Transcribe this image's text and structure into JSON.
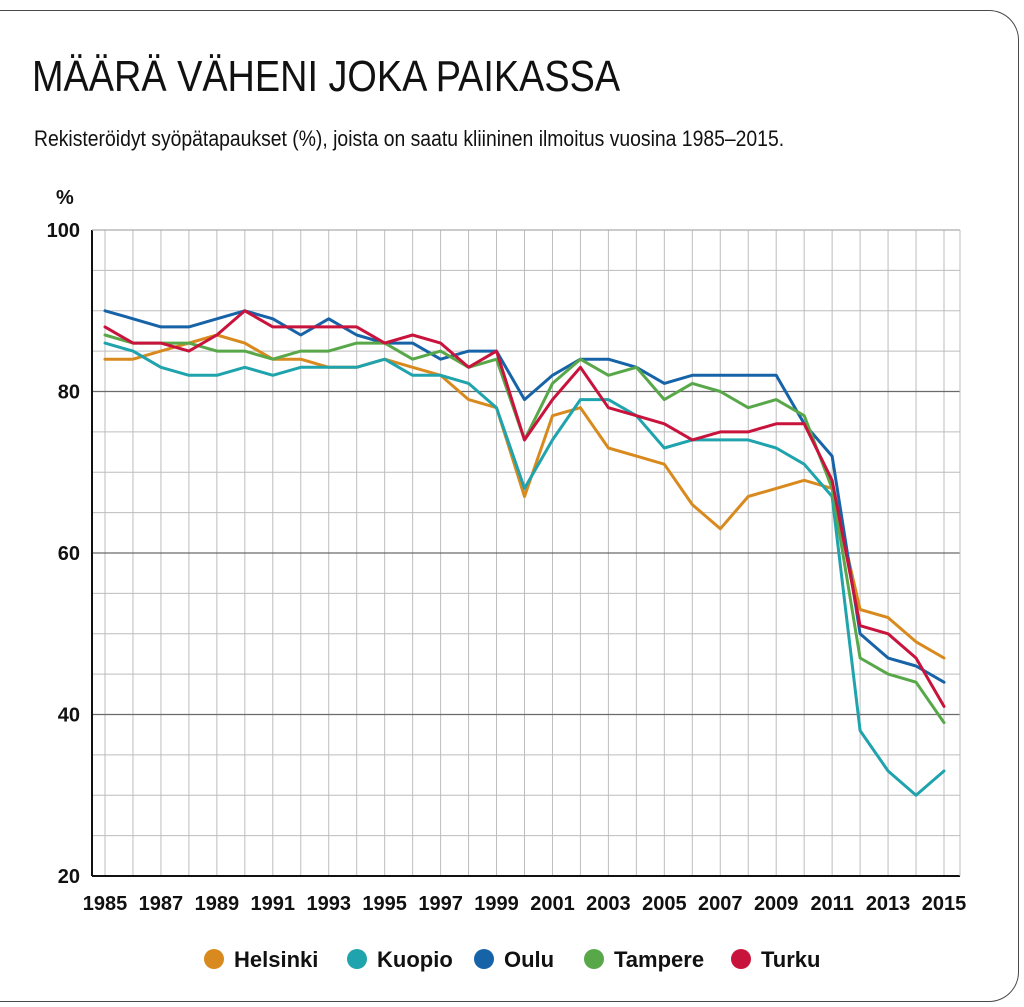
{
  "header": {
    "title": "MÄÄRÄ VÄHENI JOKA PAIKASSA",
    "subtitle": "Rekisteröidyt syöpätapaukset (%), joista on saatu kliininen ilmoitus vuosina 1985–2015."
  },
  "chart_data": {
    "type": "line",
    "title": "MÄÄRÄ VÄHENI JOKA PAIKASSA",
    "subtitle": "Rekisteröidyt syöpätapaukset (%), joista on saatu kliininen ilmoitus vuosina 1985–2015.",
    "ylabel": "%",
    "xlabel": "",
    "ylim": [
      20,
      100
    ],
    "xlim": [
      1985,
      2015
    ],
    "y_ticks": [
      20,
      40,
      60,
      80,
      100
    ],
    "x_ticks": [
      1985,
      1987,
      1989,
      1991,
      1993,
      1995,
      1997,
      1999,
      2001,
      2003,
      2005,
      2007,
      2009,
      2011,
      2013,
      2015
    ],
    "grid": true,
    "legend_position": "bottom",
    "x": [
      1985,
      1986,
      1987,
      1988,
      1989,
      1990,
      1991,
      1992,
      1993,
      1994,
      1995,
      1996,
      1997,
      1998,
      1999,
      2000,
      2001,
      2002,
      2003,
      2004,
      2005,
      2006,
      2007,
      2008,
      2009,
      2010,
      2011,
      2012,
      2013,
      2014,
      2015
    ],
    "series": [
      {
        "name": "Helsinki",
        "color": "#d98a1e",
        "values": [
          84,
          84,
          85,
          86,
          87,
          86,
          84,
          84,
          83,
          83,
          84,
          83,
          82,
          79,
          78,
          67,
          77,
          78,
          73,
          72,
          71,
          66,
          63,
          67,
          68,
          69,
          68,
          53,
          52,
          49,
          47
        ]
      },
      {
        "name": "Kuopio",
        "color": "#1fa3ad",
        "values": [
          86,
          85,
          83,
          82,
          82,
          83,
          82,
          83,
          83,
          83,
          84,
          82,
          82,
          81,
          78,
          68,
          74,
          79,
          79,
          77,
          73,
          74,
          74,
          74,
          73,
          71,
          67,
          38,
          33,
          30,
          33
        ]
      },
      {
        "name": "Oulu",
        "color": "#1763a8",
        "values": [
          90,
          89,
          88,
          88,
          89,
          90,
          89,
          87,
          89,
          87,
          86,
          86,
          84,
          85,
          85,
          79,
          82,
          84,
          84,
          83,
          81,
          82,
          82,
          82,
          82,
          76,
          72,
          50,
          47,
          46,
          44
        ]
      },
      {
        "name": "Tampere",
        "color": "#58a84a",
        "values": [
          87,
          86,
          86,
          86,
          85,
          85,
          84,
          85,
          85,
          86,
          86,
          84,
          85,
          83,
          84,
          74,
          81,
          84,
          82,
          83,
          79,
          81,
          80,
          78,
          79,
          77,
          68,
          47,
          45,
          44,
          39
        ]
      },
      {
        "name": "Turku",
        "color": "#c8143c",
        "values": [
          88,
          86,
          86,
          85,
          87,
          90,
          88,
          88,
          88,
          88,
          86,
          87,
          86,
          83,
          85,
          74,
          79,
          83,
          78,
          77,
          76,
          74,
          75,
          75,
          76,
          76,
          69,
          51,
          50,
          47,
          41
        ]
      }
    ]
  }
}
